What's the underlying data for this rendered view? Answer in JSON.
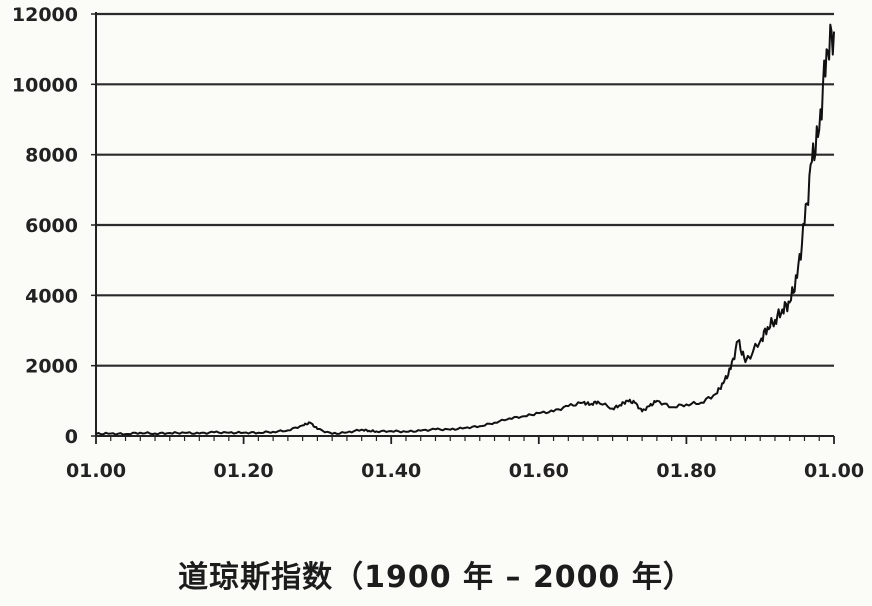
{
  "caption": "道琼斯指数（1900 年 – 2000 年）",
  "chart_data": {
    "type": "line",
    "title": "道琼斯指数（1900 年 – 2000 年）",
    "xlabel": "",
    "ylabel": "",
    "xlim": [
      1900,
      2000
    ],
    "ylim": [
      0,
      12000
    ],
    "grid": "horizontal",
    "legend": "none",
    "x_tick_labels": [
      "01.00",
      "01.20",
      "01.40",
      "01.60",
      "01.80",
      "01.00"
    ],
    "x_tick_values": [
      1900,
      1920,
      1940,
      1960,
      1980,
      2000
    ],
    "y_ticks": [
      0,
      2000,
      4000,
      6000,
      8000,
      10000,
      12000
    ],
    "y_tick_labels": [
      "0",
      "2000",
      "4000",
      "6000",
      "8000",
      "10000",
      "12000"
    ],
    "series": [
      {
        "color": "#111111",
        "x": [
          1900,
          1902,
          1904,
          1906,
          1908,
          1910,
          1912,
          1914,
          1916,
          1918,
          1920,
          1922,
          1924,
          1926,
          1928,
          1929,
          1930,
          1932,
          1934,
          1936,
          1937,
          1938,
          1940,
          1942,
          1944,
          1946,
          1948,
          1950,
          1952,
          1954,
          1956,
          1958,
          1960,
          1962,
          1964,
          1966,
          1967,
          1968,
          1970,
          1971,
          1972,
          1973,
          1974,
          1975,
          1976,
          1978,
          1980,
          1982,
          1984,
          1985,
          1986,
          1987,
          1988,
          1990,
          1991,
          1992,
          1993,
          1994,
          1995,
          1996,
          1997,
          1998,
          1999,
          2000
        ],
        "y": [
          60,
          70,
          55,
          95,
          70,
          85,
          90,
          70,
          105,
          90,
          95,
          95,
          120,
          160,
          300,
          380,
          200,
          60,
          100,
          180,
          150,
          130,
          140,
          120,
          150,
          190,
          180,
          230,
          280,
          380,
          500,
          560,
          650,
          700,
          850,
          950,
          900,
          980,
          780,
          880,
          1000,
          950,
          700,
          850,
          1000,
          820,
          900,
          950,
          1200,
          1500,
          1900,
          2700,
          2100,
          2700,
          3100,
          3300,
          3600,
          3800,
          4500,
          6000,
          7800,
          8700,
          11000,
          11500
        ]
      }
    ]
  }
}
